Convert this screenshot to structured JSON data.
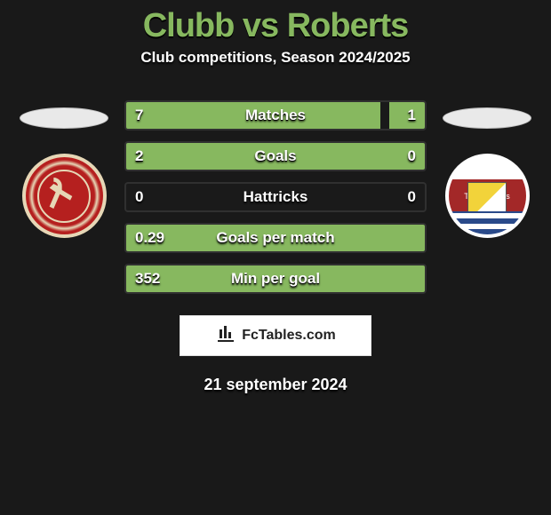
{
  "header": {
    "title": "Clubb vs Roberts",
    "subtitle": "Club competitions, Season 2024/2025",
    "title_color": "#87b85f"
  },
  "date": "21 september 2024",
  "branding": {
    "text": "FcTables.com"
  },
  "crests": {
    "left": {
      "ring_color": "#e6d7b6",
      "bg_color": "#b5201f"
    },
    "right": {
      "banner_text": "The Nomads"
    }
  },
  "comparison": {
    "bar_bg": "#1a1a1a",
    "fill_color": "#87b85f",
    "border_color": "#303030",
    "rows": [
      {
        "label": "Matches",
        "left": "7",
        "right": "1",
        "left_pct": 85,
        "right_pct": 12
      },
      {
        "label": "Goals",
        "left": "2",
        "right": "0",
        "left_pct": 100,
        "right_pct": 0
      },
      {
        "label": "Hattricks",
        "left": "0",
        "right": "0",
        "left_pct": 0,
        "right_pct": 0
      },
      {
        "label": "Goals per match",
        "left": "0.29",
        "right": "",
        "left_pct": 100,
        "right_pct": 0
      },
      {
        "label": "Min per goal",
        "left": "352",
        "right": "",
        "left_pct": 100,
        "right_pct": 0
      }
    ]
  }
}
